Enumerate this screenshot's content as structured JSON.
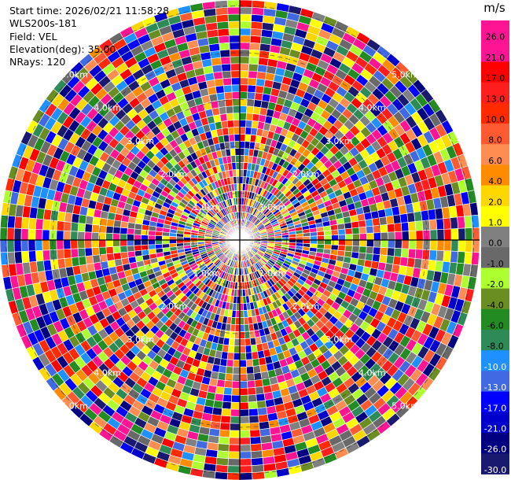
{
  "info": {
    "start_time": "Start time: 2026/02/21 11:58:28",
    "instrument": "WLS200s-181",
    "field": "Field: VEL",
    "elevation": "Elevation(deg): 35.00",
    "nrays": "NRays: 120"
  },
  "chart_data": {
    "type": "heatmap",
    "projection": "polar",
    "field": "VEL",
    "nrays": 120,
    "range_ring_labels": [
      "1.0km",
      "2.0km",
      "3.0km",
      "4.0km",
      "5.0km"
    ],
    "colorbar": {
      "unit": "m/s",
      "ticks": [
        "26.0",
        "21.0",
        "17.0",
        "13.0",
        "10.0",
        "8.0",
        "6.0",
        "4.0",
        "2.0",
        "1.0",
        "0.0",
        "-1.0",
        "-2.0",
        "-4.0",
        "-6.0",
        "-8.0",
        "-10.0",
        "-13.0",
        "-17.0",
        "-21.0",
        "-26.0",
        "-30.0"
      ],
      "colors": [
        "#ff1493",
        "#ff1493",
        "#ff0000",
        "#ff1e1e",
        "#ff2a00",
        "#ff5a32",
        "#ff8c50",
        "#ff8c00",
        "#ffd700",
        "#ffff00",
        "#808080",
        "#696969",
        "#adff2f",
        "#6b8e23",
        "#228b22",
        "#2e8b57",
        "#1e90ff",
        "#4169e1",
        "#0000ff",
        "#0000cd",
        "#000080",
        "#191970"
      ]
    }
  }
}
